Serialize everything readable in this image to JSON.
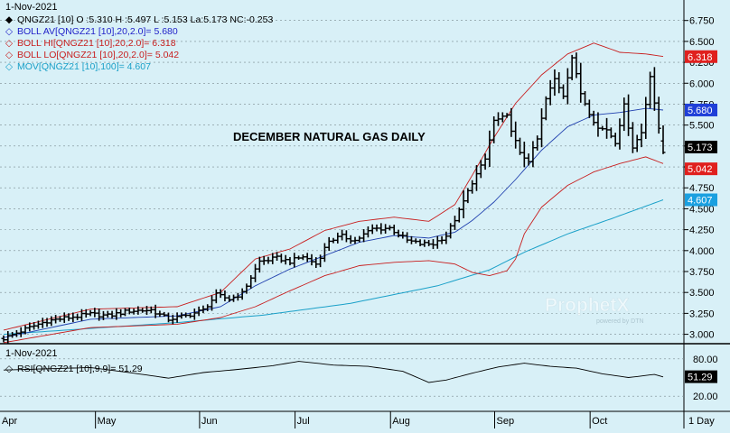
{
  "upper_panel": {
    "date": "1-Nov-2021",
    "legend": [
      {
        "marker": "◆",
        "color": "#000000",
        "text": "QNGZ21 [10] O :5.310 H :5.497 L :5.153 La:5.173 NC:-0.253"
      },
      {
        "marker": "◇",
        "color": "#1f1fc8",
        "text": "BOLL AV[QNGZ21 [10],20,2.0]= 5.680"
      },
      {
        "marker": "◇",
        "color": "#c81e1e",
        "text": "BOLL HI[QNGZ21 [10],20,2.0]= 6.318"
      },
      {
        "marker": "◇",
        "color": "#c81e1e",
        "text": "BOLL LO[QNGZ21 [10],20,2.0]= 5.042"
      },
      {
        "marker": "◇",
        "color": "#1aa0c8",
        "text": "MOV[QNGZ21 [10],100]= 4.607"
      }
    ],
    "annotation": "DECEMBER NATURAL GAS DAILY",
    "watermark": "ProphetX",
    "watermark_sub": "powered by DTN"
  },
  "lower_panel": {
    "date": "1-Nov-2021",
    "legend": {
      "marker": "◇",
      "text": "RSI[QNGZ21 [10],9,9]= 51.29"
    }
  },
  "interval_label": "1 Day",
  "colors": {
    "background": "#d8f0f7",
    "price_bars": "#000000",
    "boll_av": "#1f3fae",
    "boll_band": "#c81e1e",
    "mov": "#1aa0c8",
    "rsi": "#000000",
    "tag_last": "#000000",
    "tag_boll_hi": "#e0201e",
    "tag_boll_lo": "#e0201e",
    "tag_boll_av": "#1f3fd8",
    "tag_mov": "#1aa0e0",
    "tag_rsi": "#000000"
  },
  "chart_data": [
    {
      "type": "line",
      "chart_style": "ohlc-bars",
      "title": "DECEMBER NATURAL GAS DAILY",
      "symbol": "QNGZ21",
      "x_ticks": [
        "Apr",
        "May",
        "Jun",
        "Jul",
        "Aug",
        "Sep",
        "Oct"
      ],
      "x_tick_days": [
        0,
        22,
        46,
        68,
        90,
        114,
        136
      ],
      "ylim": [
        2.92,
        6.93
      ],
      "y_ticks": [
        3.0,
        3.25,
        3.5,
        3.75,
        4.0,
        4.25,
        4.5,
        4.75,
        5.0,
        5.25,
        5.5,
        5.75,
        6.0,
        6.25,
        6.5,
        6.75
      ],
      "y_tick_labels": [
        "3.000",
        "3.250",
        "3.500",
        "3.750",
        "4.000",
        "4.250",
        "4.500",
        "4.750",
        "5.000",
        "5.250",
        "5.500",
        "5.750",
        "6.000",
        "6.250",
        "6.500",
        "6.750"
      ],
      "last": {
        "open": 5.31,
        "high": 5.497,
        "low": 5.153,
        "close": 5.173,
        "net_change": -0.253
      },
      "value_tags": [
        {
          "series": "last",
          "label": "5.173",
          "value": 5.173
        },
        {
          "series": "boll_hi",
          "label": "6.318",
          "value": 6.318
        },
        {
          "series": "boll_lo",
          "label": "5.042",
          "value": 5.042
        },
        {
          "series": "boll_av",
          "label": "5.680",
          "value": 5.68
        },
        {
          "series": "mov",
          "label": "4.607",
          "value": 4.607
        }
      ],
      "close_keypoints": [
        [
          0,
          2.95
        ],
        [
          5,
          3.06
        ],
        [
          10,
          3.16
        ],
        [
          15,
          3.2
        ],
        [
          20,
          3.24
        ],
        [
          24,
          3.22
        ],
        [
          29,
          3.28
        ],
        [
          34,
          3.29
        ],
        [
          38,
          3.18
        ],
        [
          42,
          3.22
        ],
        [
          46,
          3.29
        ],
        [
          49,
          3.47
        ],
        [
          52,
          3.42
        ],
        [
          55,
          3.49
        ],
        [
          59,
          3.87
        ],
        [
          63,
          3.91
        ],
        [
          66,
          3.87
        ],
        [
          69,
          3.93
        ],
        [
          72,
          3.84
        ],
        [
          75,
          4.12
        ],
        [
          78,
          4.17
        ],
        [
          81,
          4.12
        ],
        [
          85,
          4.26
        ],
        [
          89,
          4.27
        ],
        [
          93,
          4.12
        ],
        [
          96,
          4.08
        ],
        [
          99,
          4.08
        ],
        [
          102,
          4.18
        ],
        [
          105,
          4.47
        ],
        [
          108,
          4.82
        ],
        [
          111,
          5.09
        ],
        [
          113,
          5.55
        ],
        [
          116,
          5.6
        ],
        [
          119,
          5.15
        ],
        [
          121,
          5.08
        ],
        [
          123,
          5.33
        ],
        [
          125,
          5.81
        ],
        [
          127,
          6.05
        ],
        [
          129,
          5.86
        ],
        [
          131,
          6.31
        ],
        [
          133,
          5.88
        ],
        [
          135,
          5.65
        ],
        [
          137,
          5.46
        ],
        [
          139,
          5.45
        ],
        [
          141,
          5.3
        ],
        [
          143,
          5.73
        ],
        [
          145,
          5.24
        ],
        [
          147,
          5.41
        ],
        [
          149,
          6.1
        ],
        [
          151,
          5.44
        ],
        [
          152,
          5.17
        ]
      ],
      "boll_hi_keypoints": [
        [
          0,
          3.05
        ],
        [
          20,
          3.3
        ],
        [
          40,
          3.33
        ],
        [
          50,
          3.5
        ],
        [
          58,
          3.9
        ],
        [
          66,
          4.02
        ],
        [
          74,
          4.24
        ],
        [
          82,
          4.35
        ],
        [
          90,
          4.4
        ],
        [
          98,
          4.35
        ],
        [
          104,
          4.55
        ],
        [
          108,
          4.9
        ],
        [
          113,
          5.35
        ],
        [
          118,
          5.76
        ],
        [
          124,
          6.1
        ],
        [
          130,
          6.35
        ],
        [
          136,
          6.48
        ],
        [
          142,
          6.37
        ],
        [
          148,
          6.35
        ],
        [
          152,
          6.32
        ]
      ],
      "boll_lo_keypoints": [
        [
          0,
          2.9
        ],
        [
          20,
          3.08
        ],
        [
          40,
          3.12
        ],
        [
          50,
          3.2
        ],
        [
          58,
          3.33
        ],
        [
          66,
          3.52
        ],
        [
          74,
          3.7
        ],
        [
          82,
          3.82
        ],
        [
          90,
          3.86
        ],
        [
          98,
          3.88
        ],
        [
          104,
          3.84
        ],
        [
          108,
          3.74
        ],
        [
          112,
          3.7
        ],
        [
          116,
          3.76
        ],
        [
          118,
          3.9
        ],
        [
          120,
          4.2
        ],
        [
          124,
          4.52
        ],
        [
          130,
          4.78
        ],
        [
          136,
          4.94
        ],
        [
          142,
          5.04
        ],
        [
          148,
          5.12
        ],
        [
          152,
          5.04
        ]
      ],
      "boll_av_keypoints": [
        [
          0,
          2.96
        ],
        [
          20,
          3.18
        ],
        [
          40,
          3.22
        ],
        [
          50,
          3.33
        ],
        [
          58,
          3.58
        ],
        [
          66,
          3.78
        ],
        [
          74,
          3.94
        ],
        [
          82,
          4.1
        ],
        [
          90,
          4.18
        ],
        [
          98,
          4.15
        ],
        [
          104,
          4.22
        ],
        [
          108,
          4.36
        ],
        [
          113,
          4.58
        ],
        [
          118,
          4.85
        ],
        [
          124,
          5.2
        ],
        [
          130,
          5.48
        ],
        [
          136,
          5.62
        ],
        [
          142,
          5.65
        ],
        [
          148,
          5.7
        ],
        [
          152,
          5.68
        ]
      ],
      "mov_keypoints": [
        [
          0,
          3.0
        ],
        [
          40,
          3.14
        ],
        [
          60,
          3.23
        ],
        [
          80,
          3.37
        ],
        [
          100,
          3.58
        ],
        [
          112,
          3.77
        ],
        [
          120,
          3.98
        ],
        [
          130,
          4.2
        ],
        [
          140,
          4.38
        ],
        [
          152,
          4.607
        ]
      ]
    },
    {
      "type": "line",
      "title": "RSI[QNGZ21 [10],9,9]",
      "ylim": [
        0,
        100
      ],
      "y_ticks": [
        20,
        80
      ],
      "y_tick_labels": [
        "20.00",
        "80.00"
      ],
      "last": 51.29,
      "value_tag": "51.29",
      "rsi_keypoints": [
        [
          0,
          62
        ],
        [
          10,
          64
        ],
        [
          20,
          66
        ],
        [
          30,
          57
        ],
        [
          38,
          49
        ],
        [
          46,
          58
        ],
        [
          54,
          63
        ],
        [
          62,
          69
        ],
        [
          68,
          76
        ],
        [
          76,
          70
        ],
        [
          84,
          68
        ],
        [
          92,
          60
        ],
        [
          98,
          42
        ],
        [
          102,
          46
        ],
        [
          108,
          57
        ],
        [
          114,
          67
        ],
        [
          120,
          73
        ],
        [
          126,
          68
        ],
        [
          132,
          65
        ],
        [
          138,
          56
        ],
        [
          144,
          50
        ],
        [
          150,
          55
        ],
        [
          152,
          51
        ]
      ]
    }
  ]
}
